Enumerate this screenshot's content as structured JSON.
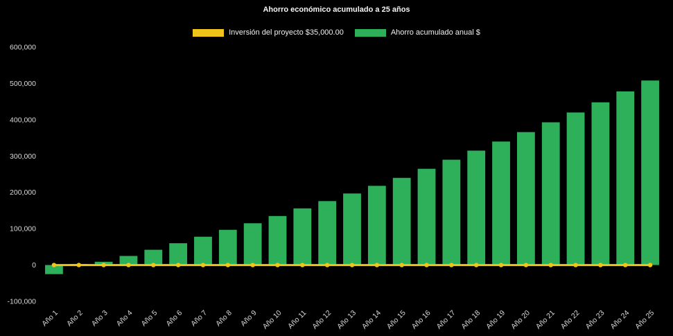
{
  "page": {
    "background_color": "#000000"
  },
  "chart": {
    "title": "Ahorro económico acumulado a 25 años",
    "legend": [
      {
        "label": "Inversión del proyecto $35,000.00",
        "color": "#f0c419"
      },
      {
        "label": "Ahorro acumulado anual $",
        "color": "#2eb05a"
      }
    ]
  },
  "chart_data": {
    "type": "bar",
    "title": "Ahorro económico acumulado a 25 años",
    "xlabel": "",
    "ylabel": "",
    "grid": false,
    "legend_position": "top",
    "ylim": [
      -100000,
      600000
    ],
    "yticks": {
      "values": [
        600000,
        500000,
        400000,
        300000,
        200000,
        100000,
        0,
        -100000
      ],
      "labels": [
        "600,000",
        "500,000",
        "400,000",
        "300,000",
        "200,000",
        "100,000",
        "0",
        "-100,000"
      ]
    },
    "categories": [
      "Año 1",
      "Año 2",
      "Año 3",
      "Año 4",
      "Año 5",
      "Año 6",
      "Año 7",
      "Año 8",
      "Año 9",
      "Año 10",
      "Año 11",
      "Año 12",
      "Año 13",
      "Año 14",
      "Año 15",
      "Año 16",
      "Año 17",
      "Año 18",
      "Año 19",
      "Año 20",
      "Año 21",
      "Año 22",
      "Año 23",
      "Año 24",
      "Año 25"
    ],
    "series": [
      {
        "name": "Inversión del proyecto $35,000.00",
        "type": "line",
        "color": "#f0c419",
        "values": [
          0,
          0,
          0,
          0,
          0,
          0,
          0,
          0,
          0,
          0,
          0,
          0,
          0,
          0,
          0,
          0,
          0,
          0,
          0,
          0,
          0,
          0,
          0,
          0,
          0
        ]
      },
      {
        "name": "Ahorro acumulado anual $",
        "type": "bar",
        "color": "#2eb05a",
        "values": [
          -25000,
          3000,
          9000,
          25000,
          42000,
          60000,
          78000,
          97000,
          115000,
          135000,
          156000,
          176000,
          197000,
          218000,
          240000,
          265000,
          290000,
          315000,
          340000,
          366000,
          393000,
          420000,
          448000,
          478000,
          508000
        ]
      }
    ]
  }
}
